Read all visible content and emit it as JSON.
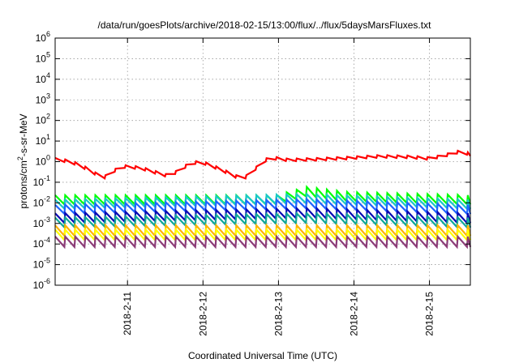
{
  "chart_data": {
    "type": "line",
    "title": "/data/run/goesPlots/archive/2018-02-15/13:00/flux/../flux/5daysMarsFluxes.txt",
    "xlabel": "Coordinated Universal Time (UTC)",
    "ylabel": {
      "base": "protons/cm",
      "sup": "2",
      "rest": "-s-sr-MeV"
    },
    "y_scale": "log",
    "ylim": [
      1e-06,
      1000000.0
    ],
    "y_ticks": [
      {
        "base": "10",
        "exp": "-6",
        "value": 1e-06
      },
      {
        "base": "10",
        "exp": "-5",
        "value": 1e-05
      },
      {
        "base": "10",
        "exp": "-4",
        "value": 0.0001
      },
      {
        "base": "10",
        "exp": "-3",
        "value": 0.001
      },
      {
        "base": "10",
        "exp": "-2",
        "value": 0.01
      },
      {
        "base": "10",
        "exp": "-1",
        "value": 0.1
      },
      {
        "base": "10",
        "exp": "0",
        "value": 1
      },
      {
        "base": "10",
        "exp": "1",
        "value": 10
      },
      {
        "base": "10",
        "exp": "2",
        "value": 100
      },
      {
        "base": "10",
        "exp": "3",
        "value": 1000
      },
      {
        "base": "10",
        "exp": "4",
        "value": 10000
      },
      {
        "base": "10",
        "exp": "5",
        "value": 100000
      },
      {
        "base": "10",
        "exp": "6",
        "value": 1000000
      }
    ],
    "xlim": [
      "2018-02-10 01:00",
      "2018-02-15 13:00"
    ],
    "x_ticks": [
      {
        "label": "2018-2-11",
        "day": 11
      },
      {
        "label": "2018-2-12",
        "day": 12
      },
      {
        "label": "2018-2-13",
        "day": 13
      },
      {
        "label": "2018-2-14",
        "day": 14
      },
      {
        "label": "2018-2-15",
        "day": 15
      }
    ],
    "grid": true,
    "sawtooth_period_hours": 3.2,
    "series": [
      {
        "color": "#ff0000",
        "width": 2.2,
        "shape": "smooth",
        "jag": 1.35,
        "anchors": [
          [
            "2018-02-10 01:00",
            1.3
          ],
          [
            "2018-02-10 06:00",
            1.0
          ],
          [
            "2018-02-10 12:00",
            0.4
          ],
          [
            "2018-02-10 16:00",
            0.15
          ],
          [
            "2018-02-10 19:00",
            0.3
          ],
          [
            "2018-02-10 22:00",
            0.6
          ],
          [
            "2018-02-11 04:00",
            0.5
          ],
          [
            "2018-02-11 09:00",
            0.3
          ],
          [
            "2018-02-11 13:00",
            0.2
          ],
          [
            "2018-02-11 17:00",
            0.4
          ],
          [
            "2018-02-11 20:00",
            0.9
          ],
          [
            "2018-02-12 00:00",
            0.9
          ],
          [
            "2018-02-12 06:00",
            0.4
          ],
          [
            "2018-02-12 10:00",
            0.2
          ],
          [
            "2018-02-12 13:00",
            0.15
          ],
          [
            "2018-02-12 17:00",
            0.5
          ],
          [
            "2018-02-12 21:00",
            1.6
          ],
          [
            "2018-02-13 03:00",
            1.2
          ],
          [
            "2018-02-13 12:00",
            1.3
          ],
          [
            "2018-02-13 22:00",
            1.5
          ],
          [
            "2018-02-14 08:00",
            1.8
          ],
          [
            "2018-02-14 18:00",
            1.7
          ],
          [
            "2018-02-15 00:00",
            1.4
          ],
          [
            "2018-02-15 06:00",
            2.2
          ],
          [
            "2018-02-15 10:00",
            3.2
          ],
          [
            "2018-02-15 13:00",
            2.2
          ]
        ]
      },
      {
        "color": "#00ff00",
        "width": 2.2,
        "shape": "saw",
        "jag": 2.8,
        "anchors": [
          [
            "2018-02-10 01:00",
            0.014
          ],
          [
            "2018-02-12 23:00",
            0.014
          ],
          [
            "2018-02-13 09:00",
            0.035
          ],
          [
            "2018-02-13 22:00",
            0.02
          ],
          [
            "2018-02-15 13:00",
            0.014
          ]
        ]
      },
      {
        "color": "#19c8c8",
        "width": 2.2,
        "shape": "saw",
        "jag": 2.8,
        "anchors": [
          [
            "2018-02-10 01:00",
            0.0085
          ],
          [
            "2018-02-13 09:00",
            0.016
          ],
          [
            "2018-02-15 13:00",
            0.0085
          ]
        ]
      },
      {
        "color": "#1e64ff",
        "width": 2.2,
        "shape": "saw",
        "jag": 2.8,
        "anchors": [
          [
            "2018-02-10 01:00",
            0.0048
          ],
          [
            "2018-02-13 09:00",
            0.009
          ],
          [
            "2018-02-15 13:00",
            0.0048
          ]
        ]
      },
      {
        "color": "#0a0ab4",
        "width": 2.2,
        "shape": "saw",
        "jag": 3.0,
        "anchors": [
          [
            "2018-02-10 01:00",
            0.0018
          ],
          [
            "2018-02-13 09:00",
            0.0032
          ],
          [
            "2018-02-15 13:00",
            0.0018
          ]
        ]
      },
      {
        "color": "#10a898",
        "width": 2.2,
        "shape": "saw",
        "jag": 3.0,
        "anchors": [
          [
            "2018-02-10 01:00",
            0.0011
          ],
          [
            "2018-02-13 09:00",
            0.0018
          ],
          [
            "2018-02-15 13:00",
            0.0011
          ]
        ]
      },
      {
        "color": "#ffb400",
        "width": 2.2,
        "shape": "saw",
        "jag": 3.2,
        "anchors": [
          [
            "2018-02-10 01:00",
            0.00045
          ],
          [
            "2018-02-15 13:00",
            0.00045
          ]
        ]
      },
      {
        "color": "#ffff00",
        "width": 2.2,
        "shape": "saw",
        "jag": 3.2,
        "anchors": [
          [
            "2018-02-10 01:00",
            0.00028
          ],
          [
            "2018-02-15 13:00",
            0.00028
          ]
        ]
      },
      {
        "color": "#8c3c78",
        "width": 2.2,
        "shape": "saw",
        "jag": 3.2,
        "anchors": [
          [
            "2018-02-10 01:00",
            0.00013
          ],
          [
            "2018-02-15 13:00",
            0.00013
          ]
        ]
      }
    ]
  }
}
